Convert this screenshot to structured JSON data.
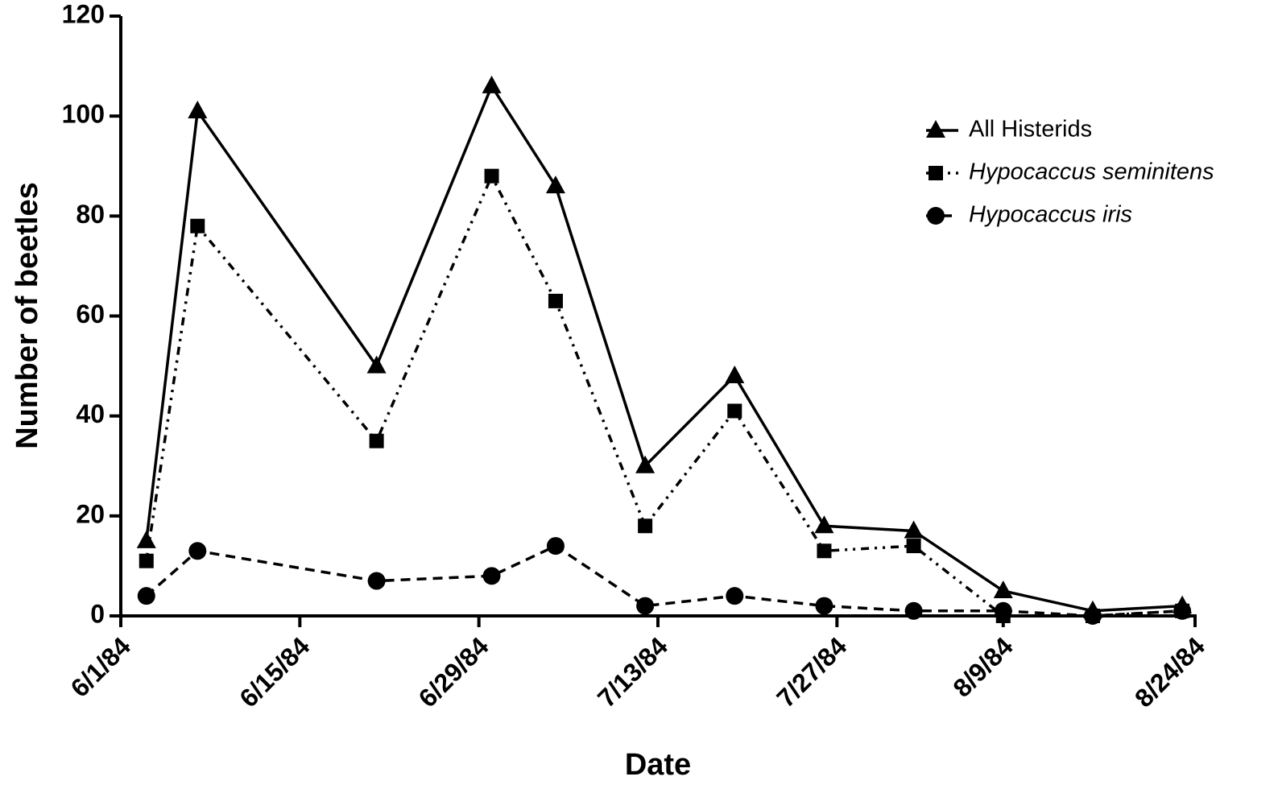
{
  "chart_data": {
    "type": "line",
    "x_label": "Date",
    "y_label": "Number of beetles",
    "x": [
      "1984-06-03",
      "1984-06-07",
      "1984-06-21",
      "1984-06-30",
      "1984-07-05",
      "1984-07-12",
      "1984-07-19",
      "1984-07-26",
      "1984-08-02",
      "1984-08-09",
      "1984-08-16",
      "1984-08-23"
    ],
    "series": [
      {
        "name": "All Histerids",
        "color": "#000000",
        "marker": "triangle",
        "line": "solid",
        "values": [
          15,
          101,
          50,
          106,
          86,
          30,
          48,
          18,
          17,
          5,
          1,
          2
        ]
      },
      {
        "name": "Hypocaccus seminitens",
        "color": "#000000",
        "marker": "square",
        "line": "dash-dot-dot",
        "values": [
          11,
          78,
          35,
          88,
          63,
          18,
          41,
          13,
          14,
          0,
          0,
          1
        ]
      },
      {
        "name": "Hypocaccus iris",
        "color": "#000000",
        "marker": "circle",
        "line": "dashed",
        "values": [
          4,
          13,
          7,
          8,
          14,
          2,
          4,
          2,
          1,
          1,
          0,
          1
        ]
      }
    ],
    "xlim": [
      "1984-06-01",
      "1984-08-24"
    ],
    "xticks": [
      {
        "value": "1984-06-01",
        "label": "6/1/84"
      },
      {
        "value": "1984-06-15",
        "label": "6/15/84"
      },
      {
        "value": "1984-06-29",
        "label": "6/29/84"
      },
      {
        "value": "1984-07-13",
        "label": "7/13/84"
      },
      {
        "value": "1984-07-27",
        "label": "7/27/84"
      },
      {
        "value": "1984-08-09",
        "label": "8/9/84"
      },
      {
        "value": "1984-08-24",
        "label": "8/24/84"
      }
    ],
    "ylim": [
      0,
      120
    ],
    "yticks": [
      0,
      20,
      40,
      60,
      80,
      100,
      120
    ],
    "legend": "upper right"
  }
}
